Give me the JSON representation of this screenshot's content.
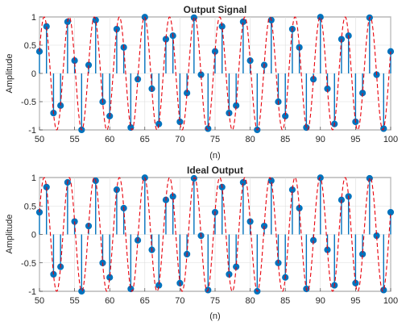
{
  "chart_data": [
    {
      "type": "stem",
      "title": "Output Signal",
      "xlabel": "(n)",
      "ylabel": "Amplitude",
      "xlim": [
        50,
        100
      ],
      "ylim": [
        -1,
        1
      ],
      "xticks": [
        50,
        55,
        60,
        65,
        70,
        75,
        80,
        85,
        90,
        95,
        100
      ],
      "yticks": [
        1,
        0.5,
        0,
        -0.5,
        -1
      ],
      "ytick_labels": [
        "1",
        "0.5",
        "0",
        "-0.5",
        "-1"
      ],
      "grid": true,
      "series": [
        {
          "style": "stem",
          "color": "#0072BD",
          "frequency": 0.28,
          "phase": 0.4,
          "x": [
            50,
            51,
            52,
            53,
            54,
            55,
            56,
            57,
            58,
            59,
            60,
            61,
            62,
            63,
            64,
            65,
            66,
            67,
            68,
            69,
            70,
            71,
            72,
            73,
            74,
            75,
            76,
            77,
            78,
            79,
            80,
            81,
            82,
            83,
            84,
            85,
            86,
            87,
            88,
            89,
            90,
            91,
            92,
            93,
            94,
            95,
            96,
            97,
            98,
            99,
            100
          ]
        },
        {
          "style": "dashed-line",
          "color": "#E8000B",
          "frequency": 0.28,
          "phase": 0.4,
          "x_range": [
            50,
            100
          ]
        }
      ]
    },
    {
      "type": "stem",
      "title": "Ideal Output",
      "xlabel": "(n)",
      "ylabel": "Amplitude",
      "xlim": [
        50,
        100
      ],
      "ylim": [
        -1,
        1
      ],
      "xticks": [
        50,
        55,
        60,
        65,
        70,
        75,
        80,
        85,
        90,
        95,
        100
      ],
      "yticks": [
        1,
        0.5,
        0,
        -0.5,
        -1
      ],
      "ytick_labels": [
        "1",
        "0.5",
        "0",
        "-0.5",
        "-1"
      ],
      "grid": true,
      "series": [
        {
          "style": "stem",
          "color": "#0072BD",
          "frequency": 0.28,
          "phase": 0.4,
          "x": [
            50,
            51,
            52,
            53,
            54,
            55,
            56,
            57,
            58,
            59,
            60,
            61,
            62,
            63,
            64,
            65,
            66,
            67,
            68,
            69,
            70,
            71,
            72,
            73,
            74,
            75,
            76,
            77,
            78,
            79,
            80,
            81,
            82,
            83,
            84,
            85,
            86,
            87,
            88,
            89,
            90,
            91,
            92,
            93,
            94,
            95,
            96,
            97,
            98,
            99,
            100
          ]
        },
        {
          "style": "dashed-line",
          "color": "#E8000B",
          "frequency": 0.28,
          "phase": 0.4,
          "x_range": [
            50,
            100
          ]
        }
      ]
    }
  ]
}
